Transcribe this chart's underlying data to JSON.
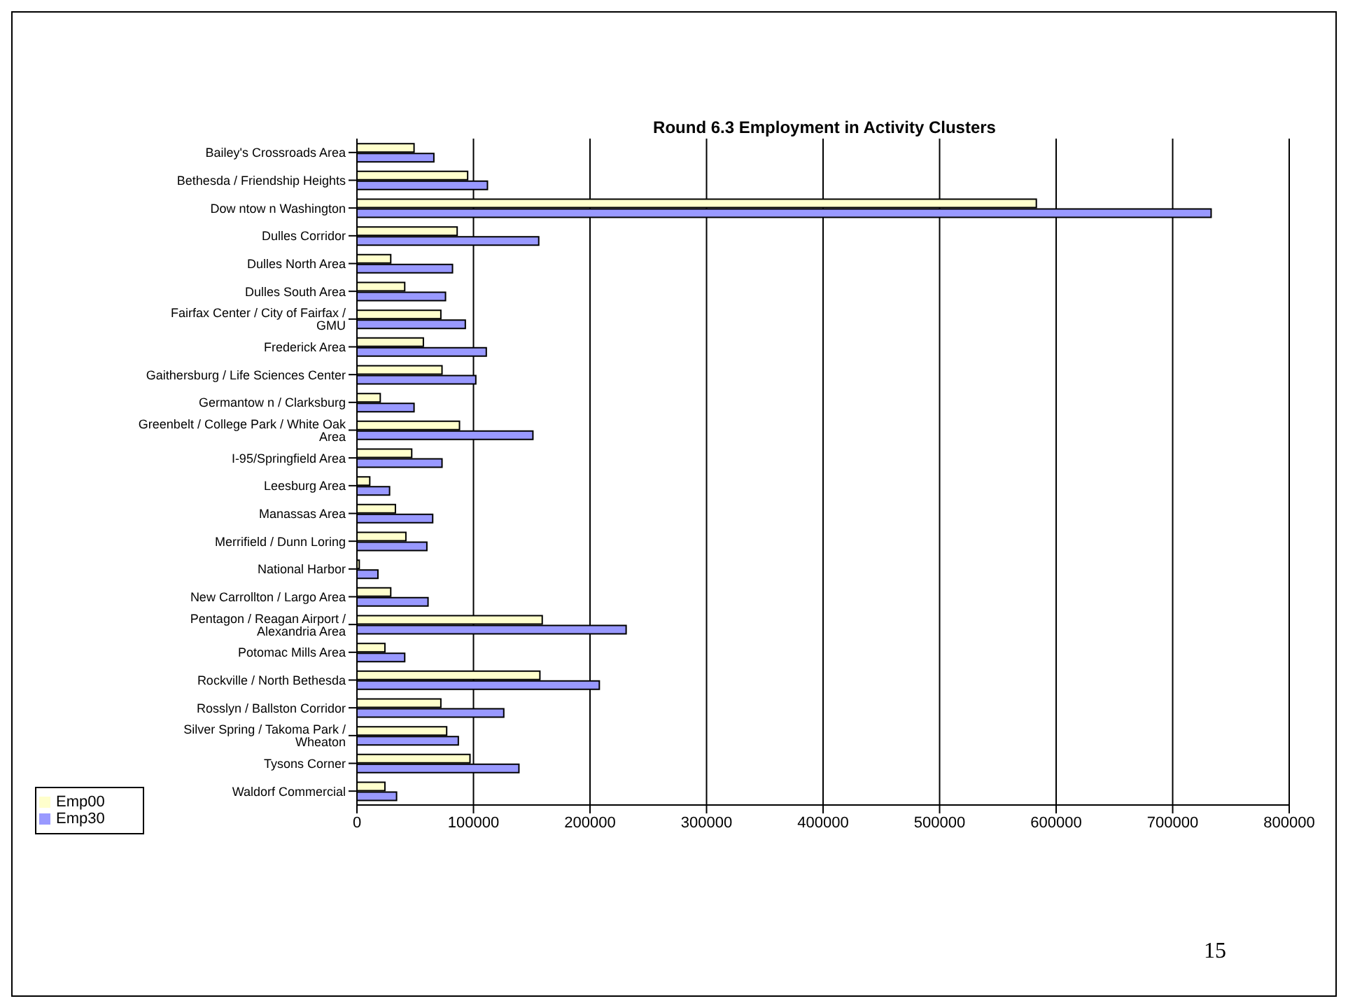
{
  "chart_data": {
    "type": "bar",
    "orientation": "horizontal",
    "title": "Round 6.3 Employment in Activity Clusters",
    "categories": [
      "Bailey's Crossroads Area",
      "Bethesda / Friendship Heights",
      "Dow ntow n Washington",
      "Dulles Corridor",
      "Dulles North Area",
      "Dulles South Area",
      "Fairfax Center / City of Fairfax / GMU",
      "Frederick Area",
      "Gaithersburg / Life Sciences Center",
      "Germantow n / Clarksburg",
      "Greenbelt / College Park / White Oak Area",
      "I-95/Springfield Area",
      "Leesburg Area",
      "Manassas Area",
      "Merrifield / Dunn Loring",
      "National Harbor",
      "New Carrollton / Largo Area",
      "Pentagon / Reagan Airport / Alexandria Area",
      "Potomac Mills Area",
      "Rockville / North Bethesda",
      "Rosslyn / Ballston Corridor",
      "Silver Spring / Takoma Park / Wheaton",
      "Tysons Corner",
      "Waldorf Commercial"
    ],
    "series": [
      {
        "name": "Emp00",
        "color": "#ffffcc",
        "values": [
          49000,
          95000,
          583000,
          86000,
          29000,
          41000,
          72000,
          57000,
          73000,
          20000,
          88000,
          47000,
          11000,
          33000,
          42000,
          2000,
          29000,
          159000,
          24000,
          157000,
          72000,
          77000,
          97000,
          24000
        ]
      },
      {
        "name": "Emp30",
        "color": "#9999ff",
        "values": [
          66000,
          112000,
          733000,
          156000,
          82000,
          76000,
          93000,
          111000,
          102000,
          49000,
          151000,
          73000,
          28000,
          65000,
          60000,
          18000,
          61000,
          231000,
          41000,
          208000,
          126000,
          87000,
          139000,
          34000
        ]
      }
    ],
    "xlim": [
      0,
      800000
    ],
    "xticks": [
      0,
      100000,
      200000,
      300000,
      400000,
      500000,
      600000,
      700000,
      800000
    ],
    "grid": "x",
    "legend": "bottom left",
    "annotations": [
      "15"
    ]
  }
}
